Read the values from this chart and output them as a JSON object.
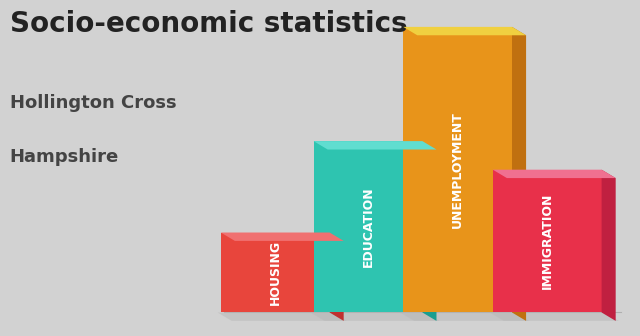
{
  "title": "Socio-economic statistics",
  "subtitle1": "Hollington Cross",
  "subtitle2": "Hampshire",
  "categories": [
    "HOUSING",
    "EDUCATION",
    "UNEMPLOYMENT",
    "IMMIGRATION"
  ],
  "values": [
    0.28,
    0.6,
    1.0,
    0.5
  ],
  "bar_front_colors": [
    "#e8453c",
    "#2ec4b0",
    "#e8941a",
    "#e8304a"
  ],
  "bar_right_colors": [
    "#c03030",
    "#1a9e90",
    "#c07010",
    "#c02040"
  ],
  "bar_top_colors": [
    "#f07070",
    "#60ddd0",
    "#f0d040",
    "#f07090"
  ],
  "shadow_color": "#c8c8c8",
  "background_color": "#d2d2d2",
  "title_fontsize": 20,
  "subtitle_fontsize": 13,
  "label_fontsize": 9
}
